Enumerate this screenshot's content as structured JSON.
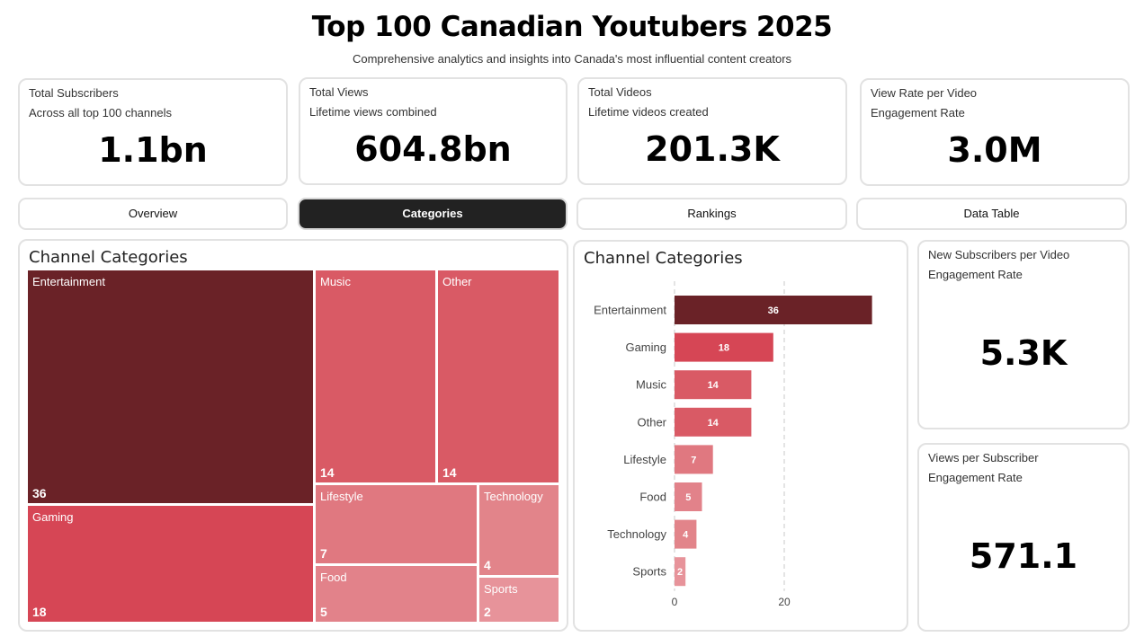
{
  "header": {
    "title": "Top 100 Canadian Youtubers 2025",
    "subtitle": "Comprehensive analytics and insights into Canada's most influential content creators"
  },
  "kpis": [
    {
      "label": "Total Subscribers",
      "sublabel": "Across all top 100 channels",
      "value": "1.1bn"
    },
    {
      "label": "Total Views",
      "sublabel": "Lifetime views combined",
      "value": "604.8bn"
    },
    {
      "label": "Total Videos",
      "sublabel": "Lifetime videos created",
      "value": "201.3K"
    },
    {
      "label": "View Rate per Video",
      "sublabel": "Engagement Rate",
      "value": "3.0M"
    }
  ],
  "tabs": [
    {
      "label": "Overview",
      "active": false
    },
    {
      "label": "Categories",
      "active": true
    },
    {
      "label": "Rankings",
      "active": false
    },
    {
      "label": "Data Table",
      "active": false
    }
  ],
  "treemap": {
    "title": "Channel Categories",
    "items": [
      {
        "name": "Entertainment",
        "value": "36",
        "color": "#6a2227"
      },
      {
        "name": "Gaming",
        "value": "18",
        "color": "#d64655"
      },
      {
        "name": "Music",
        "value": "14",
        "color": "#d95a65"
      },
      {
        "name": "Other",
        "value": "14",
        "color": "#d95a65"
      },
      {
        "name": "Lifestyle",
        "value": "7",
        "color": "#e07880"
      },
      {
        "name": "Technology",
        "value": "4",
        "color": "#e2848a"
      },
      {
        "name": "Food",
        "value": "5",
        "color": "#e2828a"
      },
      {
        "name": "Sports",
        "value": "2",
        "color": "#e7939a"
      }
    ]
  },
  "bar_panel": {
    "title": "Channel Categories"
  },
  "chart_data": {
    "type": "bar",
    "orientation": "horizontal",
    "title": "Channel Categories",
    "categories": [
      "Entertainment",
      "Gaming",
      "Music",
      "Other",
      "Lifestyle",
      "Food",
      "Technology",
      "Sports"
    ],
    "values": [
      36,
      18,
      14,
      14,
      7,
      5,
      4,
      2
    ],
    "colors": [
      "#6a2227",
      "#d64655",
      "#d95a65",
      "#d95a65",
      "#e07880",
      "#e2828a",
      "#e2848a",
      "#e7939a"
    ],
    "xticks": [
      0,
      20
    ],
    "xlim": [
      0,
      40
    ],
    "grid": true,
    "grid_style": "dashed"
  },
  "side_kpis": [
    {
      "label": "New Subscribers per Video",
      "sublabel": "Engagement Rate",
      "value": "5.3K"
    },
    {
      "label": "Views per Subscriber",
      "sublabel": "Engagement Rate",
      "value": "571.1"
    }
  ]
}
